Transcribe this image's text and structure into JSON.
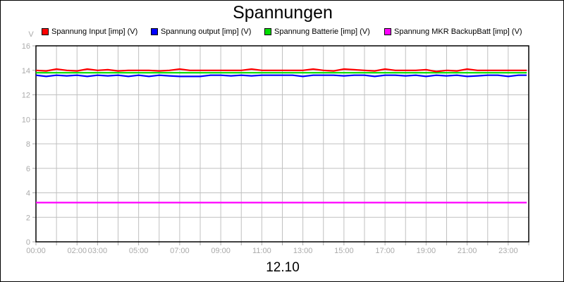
{
  "chart_data": {
    "type": "line",
    "title": "Spannungen",
    "xlabel": "12.10",
    "ylabel": "V",
    "ylim": [
      0,
      16
    ],
    "yticks": [
      "0",
      "2",
      "4",
      "6",
      "8",
      "10",
      "12",
      "14",
      "16"
    ],
    "xticks": [
      "00:00",
      "02:00",
      "03:00",
      "05:00",
      "07:00",
      "09:00",
      "11:00",
      "13:00",
      "15:00",
      "17:00",
      "19:00",
      "21:00",
      "23:00"
    ],
    "xlim_hours": [
      0,
      24
    ],
    "grid": true,
    "legend_position": "top",
    "x_hours": [
      0,
      0.5,
      1,
      1.5,
      2,
      2.5,
      3,
      3.5,
      4,
      4.5,
      5,
      5.5,
      6,
      6.5,
      7,
      7.5,
      8,
      8.5,
      9,
      9.5,
      10,
      10.5,
      11,
      11.5,
      12,
      12.5,
      13,
      13.5,
      14,
      14.5,
      15,
      15.5,
      16,
      16.5,
      17,
      17.5,
      18,
      18.5,
      19,
      19.5,
      20,
      20.5,
      21,
      21.5,
      22,
      22.5,
      23,
      23.5,
      23.9
    ],
    "series": [
      {
        "name": "Spannung Input [imp] (V)",
        "color": "#ff0000",
        "values": [
          14.0,
          13.95,
          14.1,
          14.0,
          13.95,
          14.1,
          14.0,
          14.05,
          13.95,
          14.0,
          14.0,
          14.0,
          13.95,
          14.0,
          14.1,
          14.0,
          14.0,
          14.0,
          14.0,
          14.0,
          14.0,
          14.1,
          14.0,
          14.0,
          14.0,
          14.0,
          14.0,
          14.1,
          14.0,
          13.95,
          14.1,
          14.05,
          14.0,
          13.95,
          14.1,
          14.0,
          14.0,
          14.0,
          14.05,
          13.9,
          14.0,
          13.95,
          14.1,
          14.0,
          14.0,
          14.0,
          14.0,
          14.0,
          14.0
        ]
      },
      {
        "name": "Spannung output [imp] (V)",
        "color": "#0000ff",
        "values": [
          13.6,
          13.5,
          13.6,
          13.55,
          13.6,
          13.5,
          13.6,
          13.55,
          13.6,
          13.5,
          13.6,
          13.5,
          13.6,
          13.55,
          13.5,
          13.5,
          13.5,
          13.6,
          13.6,
          13.55,
          13.6,
          13.55,
          13.6,
          13.6,
          13.6,
          13.6,
          13.5,
          13.6,
          13.6,
          13.6,
          13.55,
          13.6,
          13.6,
          13.5,
          13.6,
          13.6,
          13.55,
          13.6,
          13.5,
          13.6,
          13.55,
          13.6,
          13.5,
          13.55,
          13.6,
          13.6,
          13.5,
          13.6,
          13.6
        ]
      },
      {
        "name": "Spannung Batterie [imp] (V)",
        "color": "#00dd00",
        "values": [
          13.8,
          13.8,
          13.8,
          13.8,
          13.8,
          13.8,
          13.8,
          13.8,
          13.8,
          13.8,
          13.8,
          13.8,
          13.8,
          13.8,
          13.8,
          13.8,
          13.8,
          13.8,
          13.8,
          13.8,
          13.8,
          13.8,
          13.8,
          13.8,
          13.8,
          13.8,
          13.8,
          13.8,
          13.8,
          13.8,
          13.8,
          13.8,
          13.8,
          13.8,
          13.8,
          13.8,
          13.8,
          13.8,
          13.8,
          13.8,
          13.8,
          13.8,
          13.8,
          13.8,
          13.8,
          13.8,
          13.8,
          13.8,
          13.8
        ]
      },
      {
        "name": "Spannung MKR BackupBatt [imp] (V)",
        "color": "#ff00ff",
        "values": [
          3.2,
          3.2,
          3.2,
          3.2,
          3.2,
          3.2,
          3.2,
          3.2,
          3.2,
          3.2,
          3.2,
          3.2,
          3.2,
          3.2,
          3.2,
          3.2,
          3.2,
          3.2,
          3.2,
          3.2,
          3.2,
          3.2,
          3.2,
          3.2,
          3.2,
          3.2,
          3.2,
          3.2,
          3.2,
          3.2,
          3.2,
          3.2,
          3.2,
          3.2,
          3.2,
          3.2,
          3.2,
          3.2,
          3.2,
          3.2,
          3.2,
          3.2,
          3.2,
          3.2,
          3.2,
          3.2,
          3.2,
          3.2,
          3.2
        ]
      }
    ]
  }
}
